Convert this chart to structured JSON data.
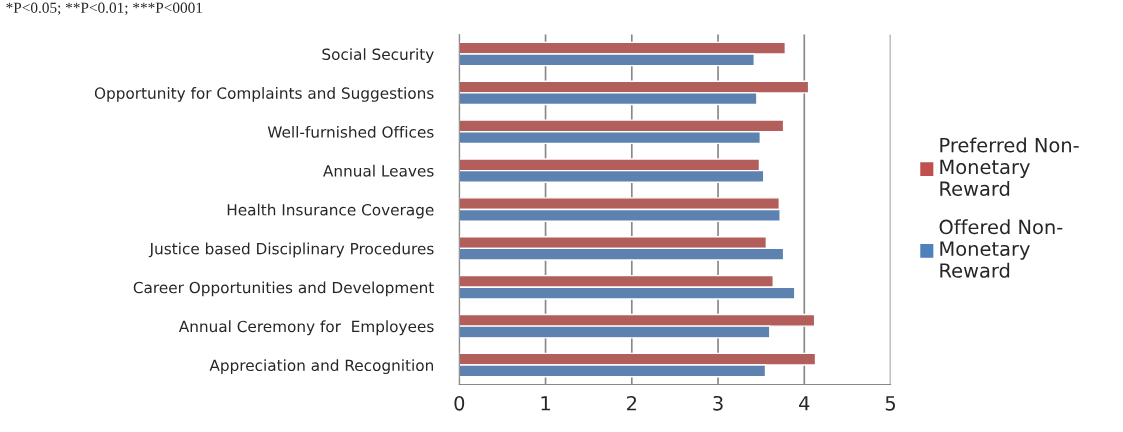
{
  "chart_data": {
    "type": "bar",
    "orientation": "horizontal",
    "categories": [
      "Social Security",
      "Opportunity for Complaints and Suggestions",
      "Well-furnished Offices",
      "Annual Leaves",
      "Health Insurance Coverage",
      "Justice based Disciplinary Procedures",
      "Career Opportunities and Development",
      "Annual Ceremony for  Employees",
      "Appreciation and Recognition"
    ],
    "series": [
      {
        "name": "Preferred Non-Monetary Reward",
        "color": "#c0504d",
        "values": [
          3.78,
          4.05,
          3.76,
          3.48,
          3.71,
          3.56,
          3.64,
          4.12,
          4.13
        ]
      },
      {
        "name": "Offered Non-Monetary Reward",
        "color": "#4f81bd",
        "values": [
          3.42,
          3.45,
          3.49,
          3.53,
          3.72,
          3.76,
          3.89,
          3.6,
          3.55
        ]
      }
    ],
    "xlim": [
      0,
      5
    ],
    "xticks": [
      0,
      1,
      2,
      3,
      4,
      5
    ],
    "grid": "x",
    "legend": "right",
    "annotations": [
      "*P<0.05; **P<0.01; ***P<0001"
    ]
  }
}
